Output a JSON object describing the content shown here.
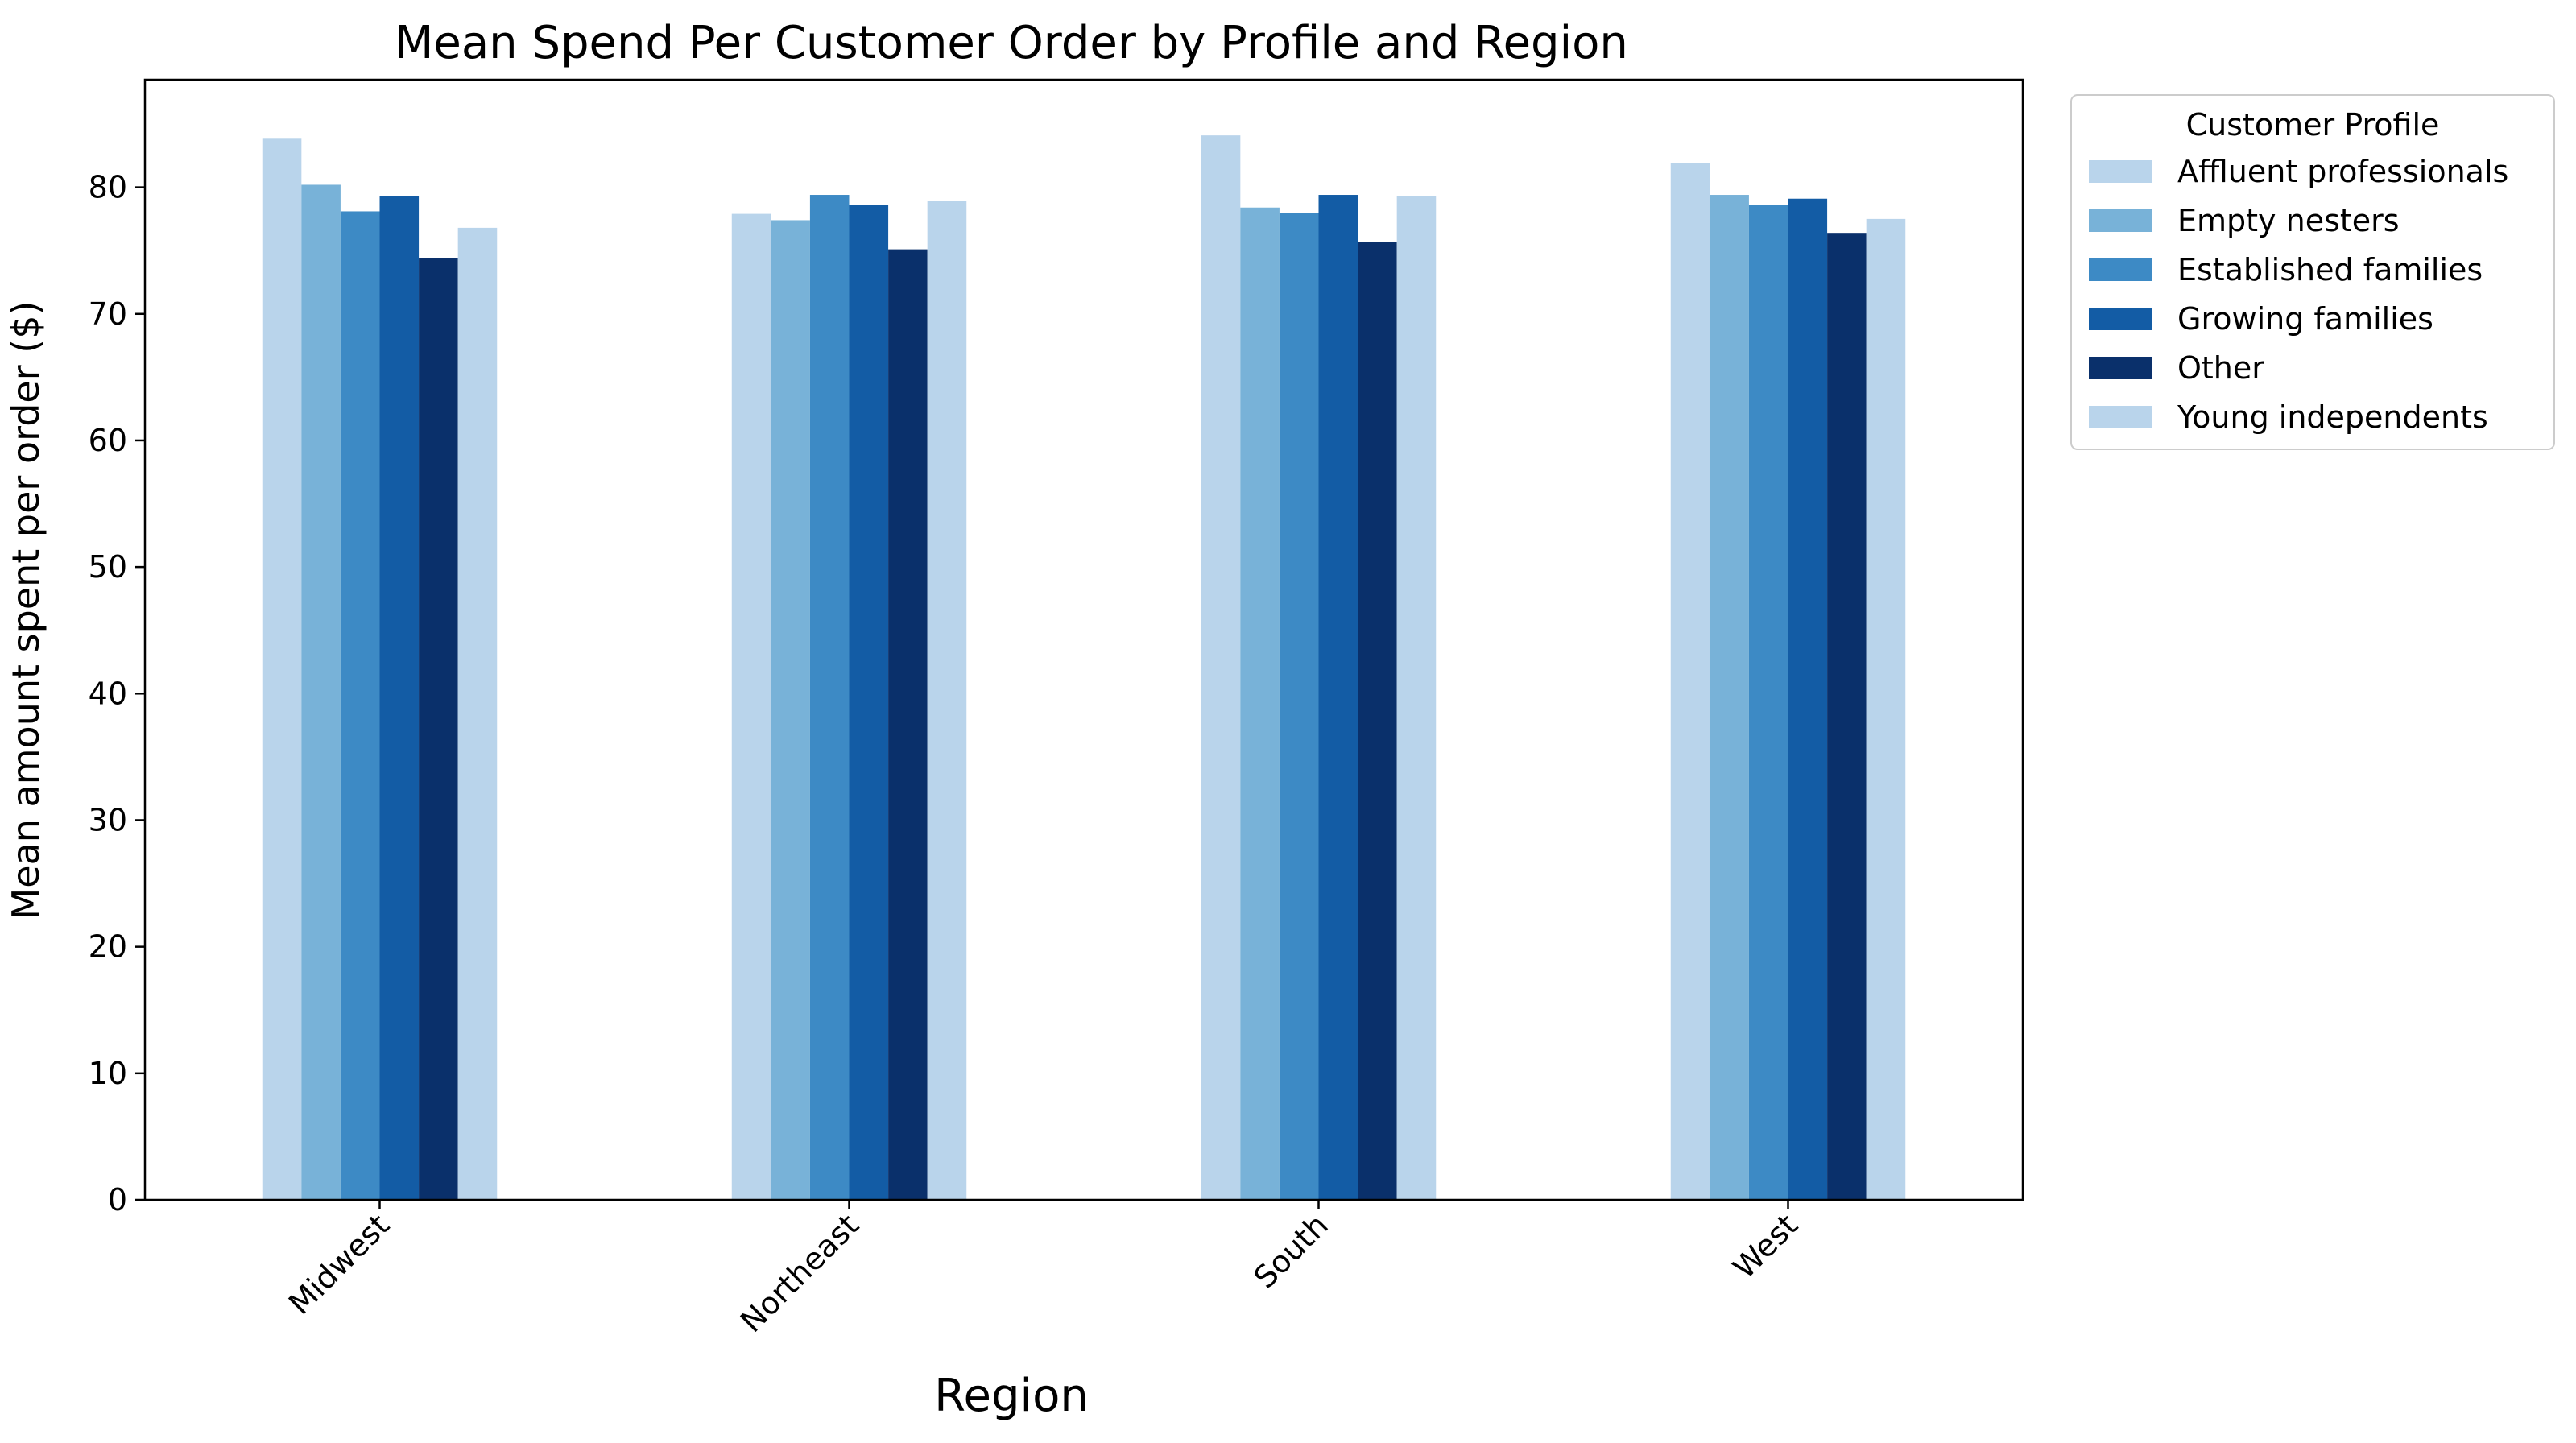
{
  "chart_data": {
    "type": "bar",
    "title": "Mean Spend Per Customer Order by Profile and Region",
    "xlabel": "Region",
    "ylabel": "Mean amount spent per order ($)",
    "categories": [
      "Midwest",
      "Northeast",
      "South",
      "West"
    ],
    "ylim": [
      0,
      88.5
    ],
    "yticks": [
      0,
      10,
      20,
      30,
      40,
      50,
      60,
      70,
      80
    ],
    "grid": false,
    "legend": {
      "title": "Customer Profile",
      "placement": "outside-top-right"
    },
    "series": [
      {
        "name": "Affluent professionals",
        "color": "#b9d4eb",
        "values": [
          83.9,
          77.9,
          84.1,
          81.9
        ]
      },
      {
        "name": "Empty nesters",
        "color": "#78b2d8",
        "values": [
          80.2,
          77.4,
          78.4,
          79.4
        ]
      },
      {
        "name": "Established families",
        "color": "#3d8ac5",
        "values": [
          78.1,
          79.4,
          78.0,
          78.6
        ]
      },
      {
        "name": "Growing families",
        "color": "#135ca5",
        "values": [
          79.3,
          78.6,
          79.4,
          79.1
        ]
      },
      {
        "name": "Other",
        "color": "#0a306b",
        "values": [
          74.4,
          75.1,
          75.7,
          76.4
        ]
      },
      {
        "name": "Young independents",
        "color": "#b9d4eb",
        "values": [
          76.8,
          78.9,
          79.3,
          77.5
        ]
      }
    ]
  }
}
